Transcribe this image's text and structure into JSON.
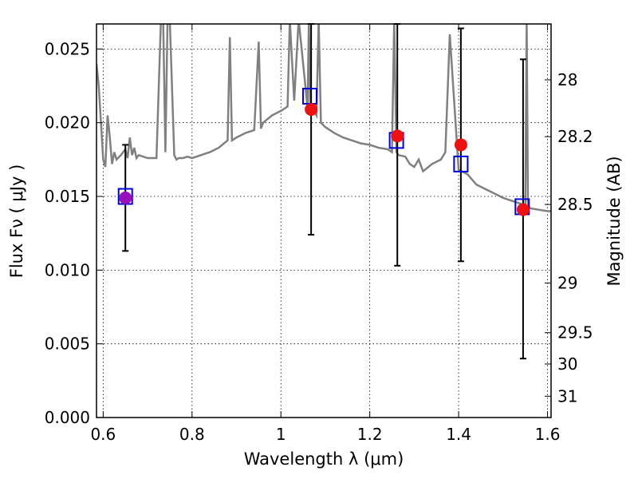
{
  "chart_data": {
    "type": "scatter",
    "title": "",
    "xlabel": "Wavelength  λ (μm)",
    "ylabel": "Flux  Fν  ( μJy )",
    "y2label": "Magnitude (AB)",
    "xlim": [
      0.585,
      1.608
    ],
    "ylim": [
      0.0,
      0.0267
    ],
    "grid": true,
    "legend": "none",
    "x_ticks": [
      {
        "value": 0.6,
        "label": "0.6"
      },
      {
        "value": 0.8,
        "label": "0.8"
      },
      {
        "value": 1.0,
        "label": "1"
      },
      {
        "value": 1.2,
        "label": "1.2"
      },
      {
        "value": 1.4,
        "label": "1.4"
      },
      {
        "value": 1.6,
        "label": "1.6"
      }
    ],
    "y_ticks": [
      {
        "value": 0.0,
        "label": "0.000"
      },
      {
        "value": 0.005,
        "label": "0.005"
      },
      {
        "value": 0.01,
        "label": "0.010"
      },
      {
        "value": 0.015,
        "label": "0.015"
      },
      {
        "value": 0.02,
        "label": "0.020"
      },
      {
        "value": 0.025,
        "label": "0.025"
      }
    ],
    "mag_ticks": [
      {
        "value": 28.0,
        "label": "28"
      },
      {
        "value": 28.2,
        "label": "28.2"
      },
      {
        "value": 28.5,
        "label": "28.5"
      },
      {
        "value": 29.0,
        "label": "29"
      },
      {
        "value": 29.5,
        "label": "29.5"
      },
      {
        "value": 30.0,
        "label": "30"
      },
      {
        "value": 31.0,
        "label": "31"
      }
    ],
    "colors": {
      "spectrum": "#808080",
      "model": "#0000dd",
      "observed": "#ee1111",
      "overlap": "#9911bb",
      "errorbar": "#000000"
    },
    "model_points": [
      {
        "x": 0.65,
        "y": 0.015
      },
      {
        "x": 1.065,
        "y": 0.0218
      },
      {
        "x": 1.26,
        "y": 0.0188
      },
      {
        "x": 1.405,
        "y": 0.0172
      },
      {
        "x": 1.543,
        "y": 0.0143
      }
    ],
    "observed_points": [
      {
        "x": 0.65,
        "y": 0.0149,
        "yerr_low": 0.0113,
        "yerr_high": 0.0185
      },
      {
        "x": 1.068,
        "y": 0.0209,
        "yerr_low": 0.0124,
        "yerr_high": 0.0267
      },
      {
        "x": 1.262,
        "y": 0.0191,
        "yerr_low": 0.0103,
        "yerr_high": 0.0267
      },
      {
        "x": 1.405,
        "y": 0.0185,
        "yerr_low": 0.0106,
        "yerr_high": 0.0264
      },
      {
        "x": 1.545,
        "y": 0.0141,
        "yerr_low": 0.004,
        "yerr_high": 0.0243
      }
    ],
    "spectrum": {
      "x": [
        0.585,
        0.59,
        0.595,
        0.6,
        0.605,
        0.61,
        0.615,
        0.62,
        0.625,
        0.63,
        0.64,
        0.65,
        0.655,
        0.66,
        0.665,
        0.67,
        0.675,
        0.68,
        0.7,
        0.72,
        0.73,
        0.735,
        0.74,
        0.745,
        0.75,
        0.76,
        0.765,
        0.77,
        0.78,
        0.79,
        0.8,
        0.82,
        0.84,
        0.86,
        0.88,
        0.885,
        0.89,
        0.9,
        0.92,
        0.94,
        0.95,
        0.955,
        0.96,
        0.98,
        1.0,
        1.015,
        1.02,
        1.03,
        1.04,
        1.06,
        1.063,
        1.066,
        1.08,
        1.085,
        1.09,
        1.1,
        1.12,
        1.14,
        1.16,
        1.18,
        1.2,
        1.22,
        1.24,
        1.25,
        1.255,
        1.26,
        1.265,
        1.28,
        1.29,
        1.3,
        1.31,
        1.32,
        1.34,
        1.36,
        1.37,
        1.38,
        1.4,
        1.42,
        1.44,
        1.46,
        1.48,
        1.5,
        1.52,
        1.54,
        1.55,
        1.553,
        1.556,
        1.56,
        1.58,
        1.6,
        1.608
      ],
      "y": [
        0.024,
        0.0225,
        0.02,
        0.0175,
        0.017,
        0.0205,
        0.019,
        0.0172,
        0.018,
        0.0175,
        0.0178,
        0.0182,
        0.0176,
        0.019,
        0.0178,
        0.0183,
        0.0176,
        0.0178,
        0.0176,
        0.0176,
        0.027,
        0.027,
        0.018,
        0.027,
        0.027,
        0.0178,
        0.0175,
        0.0176,
        0.0176,
        0.0177,
        0.0176,
        0.0178,
        0.018,
        0.0183,
        0.0188,
        0.0258,
        0.0188,
        0.019,
        0.0193,
        0.0195,
        0.0255,
        0.0196,
        0.02,
        0.0205,
        0.0208,
        0.0211,
        0.027,
        0.0215,
        0.027,
        0.021,
        0.027,
        0.0212,
        0.0205,
        0.027,
        0.02,
        0.0197,
        0.0193,
        0.019,
        0.0188,
        0.0186,
        0.0185,
        0.0183,
        0.0182,
        0.018,
        0.027,
        0.018,
        0.0178,
        0.0177,
        0.0172,
        0.017,
        0.0175,
        0.0167,
        0.0172,
        0.0175,
        0.018,
        0.026,
        0.0168,
        0.0165,
        0.0158,
        0.0155,
        0.0152,
        0.0149,
        0.0147,
        0.0145,
        0.0143,
        0.027,
        0.0145,
        0.0142,
        0.0141,
        0.014,
        0.014
      ]
    }
  }
}
